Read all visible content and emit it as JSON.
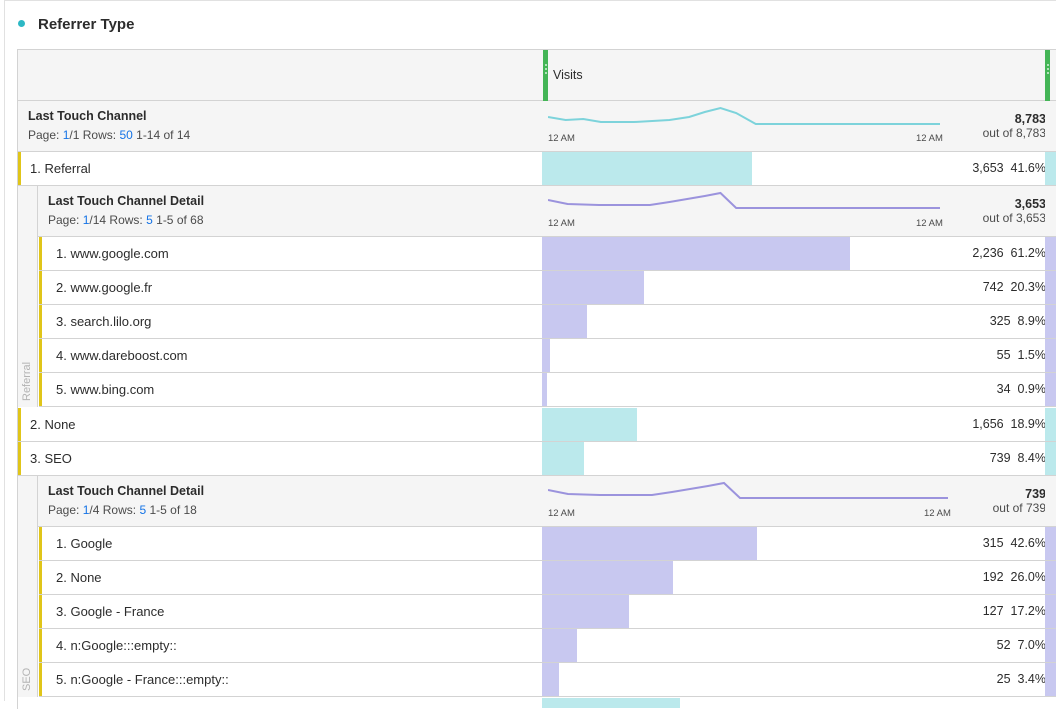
{
  "panel": {
    "title": "Referrer Type",
    "dot_color": "#2db8c5"
  },
  "columns": {
    "metric": "Visits"
  },
  "colors": {
    "channel_bar": "#bbe9ec",
    "detail_bar": "#c8c8f0",
    "channel_line": "#7dd3db",
    "detail_line": "#9b93dd",
    "row_marker": "#e0c519",
    "column_marker": "#44b556",
    "link": "#1473e6"
  },
  "top": {
    "dimension": "Last Touch Channel",
    "page_label": "Page:",
    "page": "1",
    "page_total": "/1",
    "rows_label": "Rows:",
    "rows": "50",
    "range": "1-14 of 14",
    "total": "8,783",
    "out_of": "out of 8,783",
    "axis_start": "12 AM",
    "axis_end": "12 AM"
  },
  "channels": [
    {
      "label": "1. Referral",
      "value": "3,653",
      "pct": "41.6%",
      "fraction": 0.416,
      "breakdown": {
        "side_label": "Referral",
        "dimension": "Last Touch Channel Detail",
        "page_label": "Page:",
        "page": "1",
        "page_total": "/14",
        "rows_label": "Rows:",
        "rows": "5",
        "range": "1-5 of 68",
        "total": "3,653",
        "out_of": "out of 3,653",
        "axis_start": "12 AM",
        "axis_end": "12 AM",
        "items": [
          {
            "label": "1. www.google.com",
            "value": "2,236",
            "pct": "61.2%",
            "fraction": 0.612
          },
          {
            "label": "2. www.google.fr",
            "value": "742",
            "pct": "20.3%",
            "fraction": 0.203
          },
          {
            "label": "3. search.lilo.org",
            "value": "325",
            "pct": "8.9%",
            "fraction": 0.089
          },
          {
            "label": "4. www.dareboost.com",
            "value": "55",
            "pct": "1.5%",
            "fraction": 0.015
          },
          {
            "label": "5. www.bing.com",
            "value": "34",
            "pct": "0.9%",
            "fraction": 0.009
          }
        ]
      }
    },
    {
      "label": "2. None",
      "value": "1,656",
      "pct": "18.9%",
      "fraction": 0.189
    },
    {
      "label": "3. SEO",
      "value": "739",
      "pct": "8.4%",
      "fraction": 0.084,
      "breakdown": {
        "side_label": "SEO",
        "dimension": "Last Touch Channel Detail",
        "page_label": "Page:",
        "page": "1",
        "page_total": "/4",
        "rows_label": "Rows:",
        "rows": "5",
        "range": "1-5 of 18",
        "total": "739",
        "out_of": "out of 739",
        "axis_start": "12 AM",
        "axis_end": "12 AM",
        "items": [
          {
            "label": "1. Google",
            "value": "315",
            "pct": "42.6%",
            "fraction": 0.426
          },
          {
            "label": "2. None",
            "value": "192",
            "pct": "26.0%",
            "fraction": 0.26
          },
          {
            "label": "3. Google - France",
            "value": "127",
            "pct": "17.2%",
            "fraction": 0.172
          },
          {
            "label": "4. n:Google:::empty::",
            "value": "52",
            "pct": "7.0%",
            "fraction": 0.07
          },
          {
            "label": "5. n:Google - France:::empty::",
            "value": "25",
            "pct": "3.4%",
            "fraction": 0.034
          }
        ]
      }
    }
  ]
}
